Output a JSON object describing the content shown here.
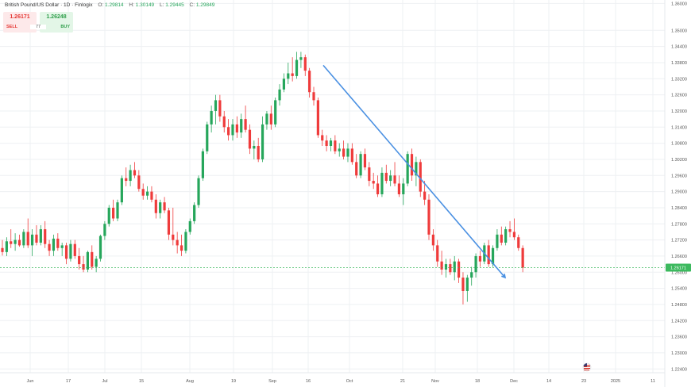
{
  "legend": {
    "title": "British Pound/US Dollar · 1D · Finlogix",
    "open_label": "O:",
    "open": "1.29814",
    "high_label": "H:",
    "high": "1.30149",
    "low_label": "L:",
    "low": "1.29445",
    "close_label": "C:",
    "close": "1.29849"
  },
  "trade_panel": {
    "sell_price": "1.26171",
    "sell_label": "SELL",
    "spread": "77",
    "buy_price": "1.26248",
    "buy_label": "BUY"
  },
  "chart_data": {
    "type": "candlestick",
    "symbol": "GBPUSD",
    "timeframe": "1D",
    "ylim": [
      1.2226,
      1.3613
    ],
    "y_ticks": [
      "1.36000",
      "1.35000",
      "1.34400",
      "1.33800",
      "1.33200",
      "1.32600",
      "1.32000",
      "1.31400",
      "1.30800",
      "1.30200",
      "1.29600",
      "1.29000",
      "1.28400",
      "1.27800",
      "1.27200",
      "1.26600",
      "1.26000",
      "1.25400",
      "1.24800",
      "1.24200",
      "1.23600",
      "1.23000",
      "1.22400"
    ],
    "x_ticks": [
      "Jun",
      "17",
      "Jul",
      "15",
      "Aug",
      "19",
      "Sep",
      "16",
      "Oct",
      "21",
      "Nov",
      "18",
      "Dec",
      "14",
      "23",
      "2025",
      "11"
    ],
    "last_price": "1.26171",
    "grid": true,
    "colors": {
      "up": "#26a65b",
      "down": "#ef3b3b",
      "trendline": "#4a90e2",
      "price_line": "#3cb95e",
      "grid": "#eef0f3"
    },
    "trendline": {
      "start": {
        "date": "Sep 23",
        "price": 1.337
      },
      "end": {
        "date": "Nov 25",
        "price": 1.258
      }
    },
    "candles": [
      [
        1.269,
        1.272,
        1.2662,
        1.2675
      ],
      [
        1.2675,
        1.273,
        1.266,
        1.2715
      ],
      [
        1.2715,
        1.276,
        1.269,
        1.2705
      ],
      [
        1.2705,
        1.2745,
        1.268,
        1.272
      ],
      [
        1.272,
        1.274,
        1.2695,
        1.27
      ],
      [
        1.27,
        1.276,
        1.269,
        1.275
      ],
      [
        1.275,
        1.28,
        1.269,
        1.27
      ],
      [
        1.27,
        1.276,
        1.266,
        1.274
      ],
      [
        1.274,
        1.2775,
        1.27,
        1.271
      ],
      [
        1.271,
        1.2775,
        1.27,
        1.276
      ],
      [
        1.276,
        1.279,
        1.269,
        1.2705
      ],
      [
        1.2705,
        1.272,
        1.266,
        1.268
      ],
      [
        1.268,
        1.274,
        1.266,
        1.2725
      ],
      [
        1.2725,
        1.2745,
        1.268,
        1.269
      ],
      [
        1.269,
        1.271,
        1.266,
        1.27
      ],
      [
        1.27,
        1.271,
        1.263,
        1.265
      ],
      [
        1.265,
        1.272,
        1.264,
        1.2705
      ],
      [
        1.2705,
        1.272,
        1.265,
        1.266
      ],
      [
        1.266,
        1.269,
        1.261,
        1.263
      ],
      [
        1.263,
        1.266,
        1.26,
        1.261
      ],
      [
        1.261,
        1.268,
        1.26,
        1.2675
      ],
      [
        1.2675,
        1.27,
        1.261,
        1.262
      ],
      [
        1.262,
        1.266,
        1.26,
        1.265
      ],
      [
        1.265,
        1.274,
        1.264,
        1.2735
      ],
      [
        1.2735,
        1.279,
        1.272,
        1.278
      ],
      [
        1.278,
        1.285,
        1.277,
        1.284
      ],
      [
        1.284,
        1.287,
        1.279,
        1.28
      ],
      [
        1.28,
        1.287,
        1.279,
        1.286
      ],
      [
        1.286,
        1.296,
        1.285,
        1.295
      ],
      [
        1.295,
        1.299,
        1.292,
        1.294
      ],
      [
        1.294,
        1.3,
        1.292,
        1.298
      ],
      [
        1.298,
        1.301,
        1.295,
        1.296
      ],
      [
        1.296,
        1.298,
        1.29,
        1.291
      ],
      [
        1.291,
        1.293,
        1.287,
        1.2885
      ],
      [
        1.2885,
        1.292,
        1.287,
        1.29
      ],
      [
        1.29,
        1.292,
        1.286,
        1.287
      ],
      [
        1.287,
        1.289,
        1.28,
        1.282
      ],
      [
        1.282,
        1.287,
        1.28,
        1.286
      ],
      [
        1.286,
        1.288,
        1.282,
        1.283
      ],
      [
        1.283,
        1.284,
        1.272,
        1.274
      ],
      [
        1.274,
        1.284,
        1.27,
        1.272
      ],
      [
        1.272,
        1.275,
        1.267,
        1.27
      ],
      [
        1.27,
        1.274,
        1.266,
        1.268
      ],
      [
        1.268,
        1.276,
        1.267,
        1.275
      ],
      [
        1.275,
        1.28,
        1.274,
        1.279
      ],
      [
        1.279,
        1.286,
        1.278,
        1.285
      ],
      [
        1.285,
        1.296,
        1.284,
        1.295
      ],
      [
        1.295,
        1.306,
        1.294,
        1.305
      ],
      [
        1.305,
        1.316,
        1.304,
        1.315
      ],
      [
        1.315,
        1.322,
        1.312,
        1.32
      ],
      [
        1.32,
        1.326,
        1.315,
        1.324
      ],
      [
        1.324,
        1.326,
        1.316,
        1.318
      ],
      [
        1.318,
        1.32,
        1.312,
        1.314
      ],
      [
        1.314,
        1.317,
        1.309,
        1.311
      ],
      [
        1.311,
        1.317,
        1.309,
        1.315
      ],
      [
        1.315,
        1.318,
        1.31,
        1.312
      ],
      [
        1.312,
        1.319,
        1.31,
        1.317
      ],
      [
        1.317,
        1.322,
        1.312,
        1.313
      ],
      [
        1.313,
        1.315,
        1.304,
        1.306
      ],
      [
        1.306,
        1.309,
        1.302,
        1.307
      ],
      [
        1.307,
        1.31,
        1.301,
        1.302
      ],
      [
        1.302,
        1.318,
        1.301,
        1.315
      ],
      [
        1.315,
        1.32,
        1.313,
        1.319
      ],
      [
        1.319,
        1.322,
        1.313,
        1.315
      ],
      [
        1.315,
        1.325,
        1.314,
        1.324
      ],
      [
        1.324,
        1.33,
        1.322,
        1.328
      ],
      [
        1.328,
        1.334,
        1.327,
        1.332
      ],
      [
        1.332,
        1.338,
        1.33,
        1.334
      ],
      [
        1.334,
        1.34,
        1.331,
        1.333
      ],
      [
        1.333,
        1.342,
        1.332,
        1.339
      ],
      [
        1.339,
        1.342,
        1.336,
        1.34
      ],
      [
        1.34,
        1.341,
        1.333,
        1.335
      ],
      [
        1.335,
        1.336,
        1.325,
        1.327
      ],
      [
        1.327,
        1.329,
        1.322,
        1.324
      ],
      [
        1.324,
        1.325,
        1.31,
        1.311
      ],
      [
        1.311,
        1.313,
        1.307,
        1.309
      ],
      [
        1.309,
        1.311,
        1.305,
        1.307
      ],
      [
        1.307,
        1.31,
        1.305,
        1.309
      ],
      [
        1.309,
        1.311,
        1.304,
        1.305
      ],
      [
        1.305,
        1.308,
        1.303,
        1.306
      ],
      [
        1.306,
        1.309,
        1.302,
        1.303
      ],
      [
        1.303,
        1.308,
        1.301,
        1.306
      ],
      [
        1.306,
        1.308,
        1.3,
        1.301
      ],
      [
        1.301,
        1.304,
        1.295,
        1.296
      ],
      [
        1.296,
        1.305,
        1.295,
        1.304
      ],
      [
        1.304,
        1.306,
        1.298,
        1.299
      ],
      [
        1.299,
        1.301,
        1.292,
        1.294
      ],
      [
        1.294,
        1.297,
        1.291,
        1.293
      ],
      [
        1.293,
        1.296,
        1.288,
        1.289
      ],
      [
        1.289,
        1.299,
        1.288,
        1.297
      ],
      [
        1.297,
        1.3,
        1.293,
        1.294
      ],
      [
        1.294,
        1.298,
        1.292,
        1.296
      ],
      [
        1.296,
        1.301,
        1.292,
        1.293
      ],
      [
        1.293,
        1.296,
        1.288,
        1.289
      ],
      [
        1.289,
        1.295,
        1.285,
        1.293
      ],
      [
        1.293,
        1.305,
        1.292,
        1.304
      ],
      [
        1.304,
        1.306,
        1.294,
        1.296
      ],
      [
        1.296,
        1.303,
        1.292,
        1.301
      ],
      [
        1.301,
        1.302,
        1.288,
        1.29
      ],
      [
        1.29,
        1.294,
        1.285,
        1.287
      ],
      [
        1.287,
        1.289,
        1.272,
        1.274
      ],
      [
        1.274,
        1.276,
        1.268,
        1.27
      ],
      [
        1.27,
        1.272,
        1.262,
        1.264
      ],
      [
        1.264,
        1.268,
        1.259,
        1.261
      ],
      [
        1.261,
        1.265,
        1.258,
        1.263
      ],
      [
        1.263,
        1.265,
        1.259,
        1.26
      ],
      [
        1.26,
        1.266,
        1.257,
        1.264
      ],
      [
        1.264,
        1.265,
        1.256,
        1.258
      ],
      [
        1.258,
        1.26,
        1.248,
        1.253
      ],
      [
        1.253,
        1.259,
        1.249,
        1.258
      ],
      [
        1.258,
        1.262,
        1.255,
        1.26
      ],
      [
        1.26,
        1.267,
        1.258,
        1.266
      ],
      [
        1.266,
        1.268,
        1.262,
        1.264
      ],
      [
        1.264,
        1.271,
        1.263,
        1.27
      ],
      [
        1.27,
        1.272,
        1.262,
        1.263
      ],
      [
        1.263,
        1.27,
        1.262,
        1.269
      ],
      [
        1.269,
        1.276,
        1.268,
        1.274
      ],
      [
        1.274,
        1.277,
        1.27,
        1.271
      ],
      [
        1.271,
        1.277,
        1.27,
        1.276
      ],
      [
        1.276,
        1.279,
        1.273,
        1.275
      ],
      [
        1.275,
        1.28,
        1.272,
        1.273
      ],
      [
        1.273,
        1.274,
        1.268,
        1.269
      ],
      [
        1.269,
        1.27,
        1.26,
        1.2617
      ]
    ]
  }
}
